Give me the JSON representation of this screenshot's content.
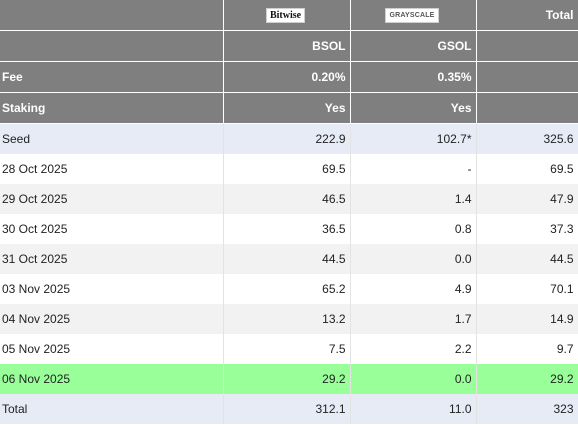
{
  "header": {
    "logos": {
      "bitwise": "Bitwise",
      "grayscale": "GRAYSCALE"
    },
    "total_label": "Total",
    "tickers": {
      "bsol": "BSOL",
      "gsol": "GSOL"
    },
    "fee": {
      "label": "Fee",
      "bsol": "0.20%",
      "gsol": "0.35%"
    },
    "staking": {
      "label": "Staking",
      "bsol": "Yes",
      "gsol": "Yes"
    }
  },
  "rows": [
    {
      "label": "Seed",
      "bsol": "222.9",
      "gsol": "102.7*",
      "total": "325.6"
    },
    {
      "label": "28 Oct 2025",
      "bsol": "69.5",
      "gsol": "-",
      "total": "69.5"
    },
    {
      "label": "29 Oct 2025",
      "bsol": "46.5",
      "gsol": "1.4",
      "total": "47.9"
    },
    {
      "label": "30 Oct 2025",
      "bsol": "36.5",
      "gsol": "0.8",
      "total": "37.3"
    },
    {
      "label": "31 Oct 2025",
      "bsol": "44.5",
      "gsol": "0.0",
      "total": "44.5"
    },
    {
      "label": "03 Nov 2025",
      "bsol": "65.2",
      "gsol": "4.9",
      "total": "70.1"
    },
    {
      "label": "04 Nov 2025",
      "bsol": "13.2",
      "gsol": "1.7",
      "total": "14.9"
    },
    {
      "label": "05 Nov 2025",
      "bsol": "7.5",
      "gsol": "2.2",
      "total": "9.7"
    },
    {
      "label": "06 Nov 2025",
      "bsol": "29.2",
      "gsol": "0.0",
      "total": "29.2"
    },
    {
      "label": "Total",
      "bsol": "312.1",
      "gsol": "11.0",
      "total": "323"
    }
  ],
  "colors": {
    "header_bg": "#7f7f7f",
    "header_text": "#ffffff",
    "seed_total_bg": "#e6ebf6",
    "stripe_bg": "#f2f2f2",
    "highlight_bg": "#99ff99"
  }
}
